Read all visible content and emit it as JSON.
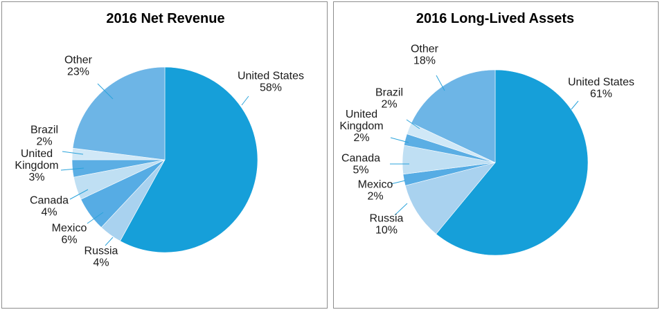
{
  "chart_data": [
    {
      "type": "pie",
      "title": "2016 Net Revenue",
      "slices": [
        {
          "label": [
            "United States"
          ],
          "pct_text": "58%",
          "value": 58,
          "color": "#169fd9"
        },
        {
          "label": [
            "Russia"
          ],
          "pct_text": "4%",
          "value": 4,
          "color": "#a9d2ef"
        },
        {
          "label": [
            "Mexico"
          ],
          "pct_text": "6%",
          "value": 6,
          "color": "#56ace4"
        },
        {
          "label": [
            "Canada"
          ],
          "pct_text": "4%",
          "value": 4,
          "color": "#bfdff3"
        },
        {
          "label": [
            "United",
            "Kingdom"
          ],
          "pct_text": "3%",
          "value": 3,
          "color": "#5baee4"
        },
        {
          "label": [
            "Brazil"
          ],
          "pct_text": "2%",
          "value": 2,
          "color": "#d0e8f7"
        },
        {
          "label": [
            "Other"
          ],
          "pct_text": "23%",
          "value": 23,
          "color": "#6db5e6"
        }
      ]
    },
    {
      "type": "pie",
      "title": "2016 Long-Lived Assets",
      "slices": [
        {
          "label": [
            "United States"
          ],
          "pct_text": "61%",
          "value": 61,
          "color": "#169fd9"
        },
        {
          "label": [
            "Russia"
          ],
          "pct_text": "10%",
          "value": 10,
          "color": "#a9d2ef"
        },
        {
          "label": [
            "Mexico"
          ],
          "pct_text": "2%",
          "value": 2,
          "color": "#56ace4"
        },
        {
          "label": [
            "Canada"
          ],
          "pct_text": "5%",
          "value": 5,
          "color": "#bfdff3"
        },
        {
          "label": [
            "United",
            "Kingdom"
          ],
          "pct_text": "2%",
          "value": 2,
          "color": "#5baee4"
        },
        {
          "label": [
            "Brazil"
          ],
          "pct_text": "2%",
          "value": 2,
          "color": "#d0e8f7"
        },
        {
          "label": [
            "Other"
          ],
          "pct_text": "18%",
          "value": 18,
          "color": "#6db5e6"
        }
      ]
    }
  ]
}
